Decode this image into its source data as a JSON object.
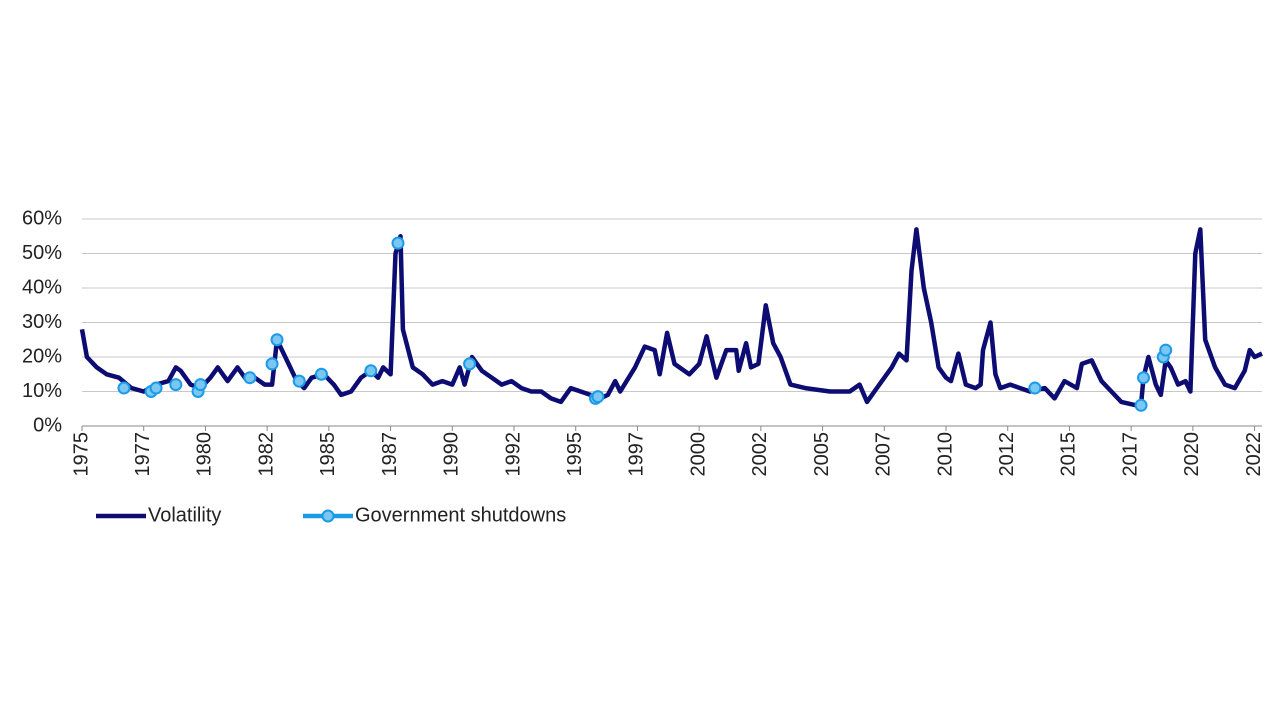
{
  "chart_data": {
    "type": "line",
    "series": [
      {
        "name": "Volatility",
        "color": "#0c0c72",
        "x": [
          1975.0,
          1975.2,
          1975.6,
          1976.0,
          1976.5,
          1977.0,
          1977.5,
          1978.0,
          1978.5,
          1978.8,
          1979.0,
          1979.4,
          1979.8,
          1980.2,
          1980.5,
          1980.9,
          1981.3,
          1981.7,
          1982.0,
          1982.4,
          1982.7,
          1982.9,
          1983.3,
          1983.7,
          1984.0,
          1984.3,
          1984.8,
          1985.2,
          1985.5,
          1985.9,
          1986.3,
          1986.7,
          1987.0,
          1987.2,
          1987.5,
          1987.7,
          1987.9,
          1988.0,
          1988.4,
          1988.8,
          1989.2,
          1989.6,
          1990.0,
          1990.3,
          1990.5,
          1990.8,
          1991.2,
          1991.6,
          1992.0,
          1992.4,
          1992.8,
          1993.2,
          1993.6,
          1994.0,
          1994.4,
          1994.8,
          1995.2,
          1995.6,
          1996.0,
          1996.3,
          1996.6,
          1996.8,
          1997.4,
          1997.8,
          1998.2,
          1998.4,
          1998.7,
          1999.0,
          1999.6,
          2000.0,
          2000.3,
          2000.7,
          2001.1,
          2001.5,
          2001.6,
          2001.9,
          2002.1,
          2002.4,
          2002.7,
          2003.0,
          2003.3,
          2003.7,
          2004.3,
          2005.3,
          2006.1,
          2006.5,
          2006.8,
          2007.1,
          2007.8,
          2008.1,
          2008.4,
          2008.6,
          2008.8,
          2009.1,
          2009.4,
          2009.7,
          2010.0,
          2010.2,
          2010.5,
          2010.8,
          2011.2,
          2011.4,
          2011.5,
          2011.8,
          2012.0,
          2012.2,
          2012.6,
          2013.0,
          2013.4,
          2014.0,
          2014.4,
          2014.8,
          2015.3,
          2015.5,
          2015.9,
          2016.3,
          2016.7,
          2017.1,
          2017.7,
          2017.9,
          2018.0,
          2018.2,
          2018.5,
          2018.7,
          2018.9,
          2019.1,
          2019.4,
          2019.7,
          2019.9,
          2020.1,
          2020.3,
          2020.5,
          2020.9,
          2021.3,
          2021.7,
          2022.1,
          2022.3,
          2022.5,
          2022.8
        ],
        "values": [
          28,
          20,
          17,
          15,
          14,
          11,
          10,
          12,
          13,
          17,
          16,
          12,
          11,
          14,
          17,
          13,
          17,
          13,
          14,
          12,
          12,
          25,
          19,
          13,
          11,
          14,
          15,
          12,
          9,
          10,
          14,
          16,
          14,
          17,
          15,
          50,
          55,
          28,
          17,
          15,
          12,
          13,
          12,
          17,
          12,
          20,
          16,
          14,
          12,
          13,
          11,
          10,
          10,
          8,
          7,
          11,
          10,
          9,
          8,
          9,
          13,
          10,
          17,
          23,
          22,
          15,
          27,
          18,
          15,
          18,
          26,
          14,
          22,
          22,
          16,
          24,
          17,
          18,
          35,
          24,
          20,
          12,
          11,
          10,
          10,
          12,
          7,
          10,
          17,
          21,
          19,
          45,
          57,
          40,
          30,
          17,
          14,
          13,
          21,
          12,
          11,
          12,
          22,
          30,
          15,
          11,
          12,
          11,
          10,
          11,
          8,
          13,
          11,
          18,
          19,
          13,
          10,
          7,
          6,
          6,
          14,
          20,
          12,
          9,
          19,
          17,
          12,
          13,
          10,
          50,
          57,
          25,
          17,
          12,
          11,
          16,
          22,
          20,
          21
        ]
      },
      {
        "name": "Government shutdowns",
        "color": "#1a9be8",
        "x": [
          1976.7,
          1977.8,
          1978.0,
          1978.8,
          1979.7,
          1979.8,
          1981.8,
          1982.7,
          1982.9,
          1983.8,
          1984.7,
          1986.7,
          1987.8,
          1990.7,
          1995.8,
          1995.9,
          2013.6,
          2017.9,
          2018.0,
          2018.8,
          2018.9
        ],
        "values": [
          11,
          10,
          11,
          12,
          10,
          12,
          14,
          18,
          25,
          13,
          15,
          16,
          53,
          18,
          8,
          8.5,
          11,
          6,
          14,
          20,
          22
        ]
      }
    ],
    "xlim": [
      1975,
      2022.8
    ],
    "xticks": [
      1975,
      {
        "value": 1977.5,
        "label": "1977"
      },
      1980,
      {
        "value": 1982.5,
        "label": "1982"
      },
      1985,
      {
        "value": 1987.5,
        "label": "1987"
      },
      1990,
      {
        "value": 1992.5,
        "label": "1992"
      },
      1995,
      {
        "value": 1997.5,
        "label": "1997"
      },
      2000,
      {
        "value": 2002.5,
        "label": "2002"
      },
      2005,
      {
        "value": 2007.5,
        "label": "2007"
      },
      2010,
      {
        "value": 2012.5,
        "label": "2012"
      },
      2015,
      {
        "value": 2017.5,
        "label": "2017"
      },
      2020,
      {
        "value": 2022.5,
        "label": "2022"
      }
    ],
    "ylim": [
      0,
      60
    ],
    "yticks": [
      {
        "value": 0,
        "label": "0%"
      },
      {
        "value": 10,
        "label": "10%"
      },
      {
        "value": 20,
        "label": "20%"
      },
      {
        "value": 30,
        "label": "30%"
      },
      {
        "value": 40,
        "label": "40%"
      },
      {
        "value": 50,
        "label": "50%"
      },
      {
        "value": 60,
        "label": "60%"
      }
    ],
    "grid": true
  }
}
